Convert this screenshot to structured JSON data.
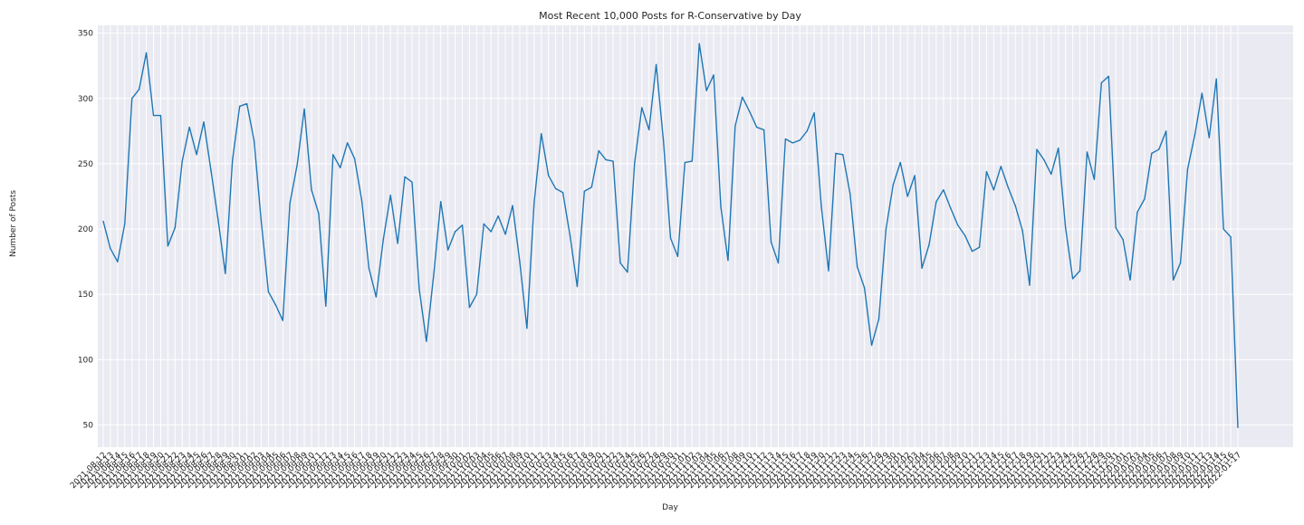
{
  "chart_data": {
    "type": "line",
    "title": "Most Recent 10,000 Posts for R-Conservative by Day",
    "xlabel": "Day",
    "ylabel": "Number of Posts",
    "ylim": [
      33,
      356
    ],
    "yticks": [
      50,
      100,
      150,
      200,
      250,
      300,
      350
    ],
    "grid": true,
    "legend": "none",
    "x": [
      "2021-08-12",
      "2021-08-13",
      "2021-08-14",
      "2021-08-15",
      "2021-08-16",
      "2021-08-17",
      "2021-08-18",
      "2021-08-19",
      "2021-08-20",
      "2021-08-21",
      "2021-08-22",
      "2021-08-23",
      "2021-08-24",
      "2021-08-25",
      "2021-08-26",
      "2021-08-27",
      "2021-08-28",
      "2021-08-29",
      "2021-08-30",
      "2021-08-31",
      "2021-09-01",
      "2021-09-02",
      "2021-09-03",
      "2021-09-04",
      "2021-09-05",
      "2021-09-06",
      "2021-09-07",
      "2021-09-08",
      "2021-09-09",
      "2021-09-10",
      "2021-09-11",
      "2021-09-12",
      "2021-09-13",
      "2021-09-14",
      "2021-09-15",
      "2021-09-16",
      "2021-09-17",
      "2021-09-18",
      "2021-09-19",
      "2021-09-20",
      "2021-09-21",
      "2021-09-22",
      "2021-09-23",
      "2021-09-24",
      "2021-09-25",
      "2021-09-26",
      "2021-09-27",
      "2021-09-28",
      "2021-09-29",
      "2021-09-30",
      "2021-10-01",
      "2021-10-02",
      "2021-10-03",
      "2021-10-04",
      "2021-10-05",
      "2021-10-06",
      "2021-10-07",
      "2021-10-08",
      "2021-10-09",
      "2021-10-10",
      "2021-10-11",
      "2021-10-12",
      "2021-10-13",
      "2021-10-14",
      "2021-10-15",
      "2021-10-16",
      "2021-10-17",
      "2021-10-18",
      "2021-10-19",
      "2021-10-20",
      "2021-10-21",
      "2021-10-22",
      "2021-10-23",
      "2021-10-24",
      "2021-10-25",
      "2021-10-26",
      "2021-10-27",
      "2021-10-28",
      "2021-10-29",
      "2021-10-30",
      "2021-10-31",
      "2021-11-01",
      "2021-11-02",
      "2021-11-03",
      "2021-11-04",
      "2021-11-05",
      "2021-11-06",
      "2021-11-07",
      "2021-11-08",
      "2021-11-09",
      "2021-11-10",
      "2021-11-11",
      "2021-11-12",
      "2021-11-13",
      "2021-11-14",
      "2021-11-15",
      "2021-11-16",
      "2021-11-17",
      "2021-11-18",
      "2021-11-19",
      "2021-11-20",
      "2021-11-21",
      "2021-11-22",
      "2021-11-23",
      "2021-11-24",
      "2021-11-25",
      "2021-11-26",
      "2021-11-27",
      "2021-11-28",
      "2021-11-29",
      "2021-11-30",
      "2021-12-01",
      "2021-12-02",
      "2021-12-03",
      "2021-12-04",
      "2021-12-05",
      "2021-12-06",
      "2021-12-07",
      "2021-12-08",
      "2021-12-09",
      "2021-12-10",
      "2021-12-11",
      "2021-12-12",
      "2021-12-13",
      "2021-12-14",
      "2021-12-15",
      "2021-12-16",
      "2021-12-17",
      "2021-12-18",
      "2021-12-19",
      "2021-12-20",
      "2021-12-21",
      "2021-12-22",
      "2021-12-23",
      "2021-12-24",
      "2021-12-25",
      "2021-12-26",
      "2021-12-27",
      "2021-12-28",
      "2021-12-29",
      "2021-12-30",
      "2021-12-31",
      "2022-01-01",
      "2022-01-02",
      "2022-01-03",
      "2022-01-04",
      "2022-01-05",
      "2022-01-06",
      "2022-01-07",
      "2022-01-08",
      "2022-01-09",
      "2022-01-10",
      "2022-01-11",
      "2022-01-12",
      "2022-01-13",
      "2022-01-14",
      "2022-01-15",
      "2022-01-16",
      "2022-01-17"
    ],
    "series": [
      {
        "values": [
          206,
          185,
          175,
          204,
          300,
          307,
          335,
          287,
          287,
          187,
          201,
          252,
          278,
          257,
          282,
          245,
          207,
          166,
          253,
          294,
          296,
          268,
          206,
          152,
          142,
          130,
          220,
          249,
          292,
          230,
          212,
          141,
          257,
          247,
          266,
          254,
          222,
          170,
          148,
          192,
          226,
          189,
          240,
          236,
          154,
          114,
          164,
          221,
          184,
          198,
          203,
          140,
          150,
          204,
          198,
          210,
          196,
          218,
          175,
          124,
          220,
          273,
          241,
          231,
          228,
          195,
          156,
          229,
          232,
          260,
          253,
          252,
          174,
          167,
          251,
          293,
          276,
          326,
          268,
          193,
          179,
          251,
          252,
          342,
          306,
          318,
          217,
          176,
          279,
          301,
          290,
          278,
          276,
          190,
          174,
          269,
          266,
          268,
          275,
          289,
          217,
          168,
          258,
          257,
          227,
          171,
          155,
          111,
          131,
          200,
          234,
          251,
          225,
          241,
          170,
          188,
          221,
          230,
          216,
          203,
          195,
          183,
          186,
          244,
          230,
          248,
          232,
          218,
          199,
          157,
          261,
          253,
          242,
          262,
          201,
          162,
          168,
          259,
          238,
          312,
          317,
          201,
          192,
          161,
          213,
          223,
          258,
          261,
          275,
          161,
          174,
          246,
          272,
          304,
          270,
          315,
          200,
          194,
          48
        ]
      }
    ]
  },
  "colors": {
    "line": "#1f77b4",
    "plot_background": "#eaeaf2",
    "grid": "#ffffff"
  }
}
